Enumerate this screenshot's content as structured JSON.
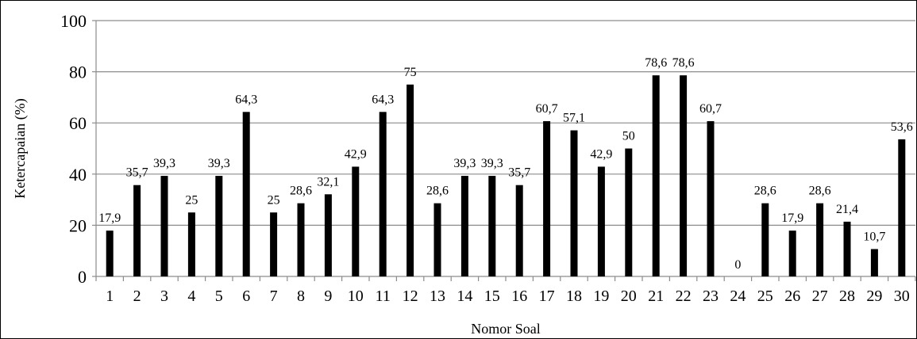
{
  "chart_data": {
    "type": "bar",
    "title": "",
    "xlabel": "Nomor Soal",
    "ylabel": "Ketercapaian (%)",
    "ylim": [
      0,
      100
    ],
    "yticks": [
      0,
      20,
      40,
      60,
      80,
      100
    ],
    "grid": "horizontal",
    "bar_color": "#000000",
    "categories": [
      "1",
      "2",
      "3",
      "4",
      "5",
      "6",
      "7",
      "8",
      "9",
      "10",
      "11",
      "12",
      "13",
      "14",
      "15",
      "16",
      "17",
      "18",
      "19",
      "20",
      "21",
      "22",
      "23",
      "24",
      "25",
      "26",
      "27",
      "28",
      "29",
      "30"
    ],
    "values": [
      17.9,
      35.7,
      39.3,
      25,
      39.3,
      64.3,
      25,
      28.6,
      32.1,
      42.9,
      64.3,
      75,
      28.6,
      39.3,
      39.3,
      35.7,
      60.7,
      57.1,
      42.9,
      50,
      78.6,
      78.6,
      60.7,
      0,
      28.6,
      17.9,
      28.6,
      21.4,
      10.7,
      53.6
    ],
    "value_labels": [
      "17,9",
      "35,7",
      "39,3",
      "25",
      "39,3",
      "64,3",
      "25",
      "28,6",
      "32,1",
      "42,9",
      "64,3",
      "75",
      "28,6",
      "39,3",
      "39,3",
      "35,7",
      "60,7",
      "57,1",
      "42,9",
      "50",
      "78,6",
      "78,6",
      "60,7",
      "0",
      "28,6",
      "17,9",
      "28,6",
      "21,4",
      "10,7",
      "53,6"
    ]
  }
}
